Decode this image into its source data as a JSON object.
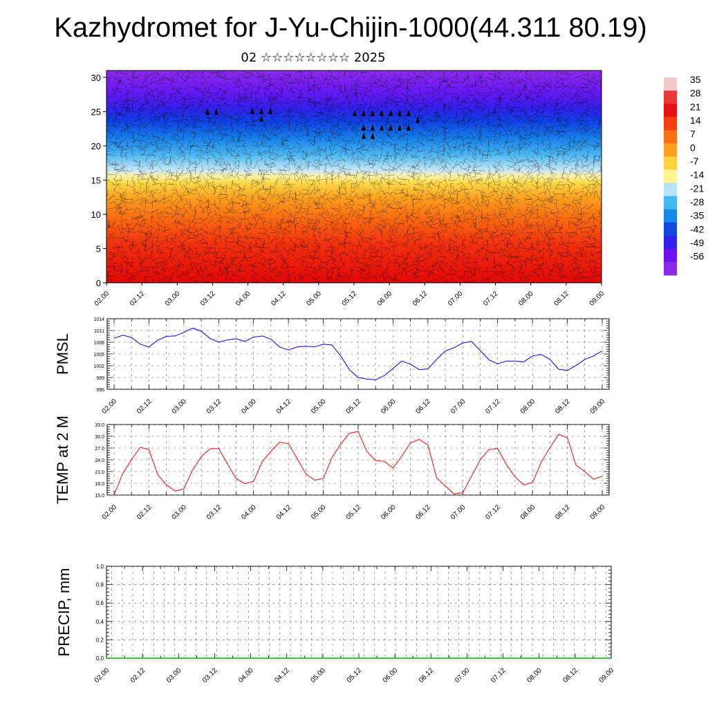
{
  "title": "Kazhydromet for J-Yu-Chijin-1000(44.311 80.19)",
  "subtitle": "02 ☆☆☆☆☆☆☆☆ 2025",
  "chart_data": [
    {
      "type": "heatmap",
      "ylim": [
        0,
        31
      ],
      "y_ticks": [
        "0",
        "5",
        "10",
        "15",
        "20",
        "25",
        "30"
      ],
      "x_ticks": [
        "02.00",
        "02.12",
        "03.00",
        "03.12",
        "04.00",
        "04.12",
        "05.00",
        "05.12",
        "06.00",
        "06.12",
        "07.00",
        "07.12",
        "08.00",
        "08.12",
        "09.00"
      ],
      "colorbar": {
        "labels": [
          "35",
          "28",
          "21",
          "14",
          "7",
          "0",
          "-7",
          "-14",
          "-21",
          "-28",
          "-35",
          "-42",
          "-49",
          "-56"
        ],
        "colors": [
          "#f2c8c8",
          "#e83838",
          "#e81010",
          "#f04010",
          "#f87010",
          "#fca020",
          "#fdd040",
          "#fef690",
          "#b8e4f8",
          "#40b8f0",
          "#1888e8",
          "#1048e0",
          "#3020e8",
          "#7010f0",
          "#8c28e8"
        ]
      },
      "note_values": "temperature field; colder with height, warm near ground",
      "series": []
    },
    {
      "type": "line",
      "ylabel": "PMSL",
      "ylim": [
        996,
        1014
      ],
      "y_ticks": [
        "996",
        "999",
        "1002",
        "1005",
        "1008",
        "1011",
        "1014"
      ],
      "x_ticks": [
        "02.00",
        "02.12",
        "03.00",
        "03.12",
        "04.00",
        "04.12",
        "05.00",
        "05.12",
        "06.00",
        "06.12",
        "07.00",
        "07.12",
        "08.00",
        "08.12",
        "09.00"
      ],
      "color": "#0000ff",
      "values": [
        1009.0,
        1009.8,
        1009.2,
        1007.5,
        1006.8,
        1008.5,
        1009.5,
        1009.6,
        1010.5,
        1011.6,
        1010.8,
        1009.0,
        1008.0,
        1008.6,
        1008.9,
        1008.2,
        1009.3,
        1009.6,
        1008.8,
        1006.8,
        1006.0,
        1006.8,
        1007.0,
        1006.8,
        1007.5,
        1007.3,
        1004.5,
        1001.0,
        999.0,
        998.6,
        998.4,
        999.5,
        1001.3,
        1003.2,
        1002.4,
        1001.0,
        1001.2,
        1003.6,
        1005.8,
        1006.6,
        1007.8,
        1008.2,
        1005.9,
        1003.5,
        1002.5,
        1003.2,
        1003.2,
        1003.0,
        1004.5,
        1004.9,
        1003.6,
        1001.1,
        1000.8,
        1002.1,
        1003.6,
        1004.5,
        1005.8
      ]
    },
    {
      "type": "line",
      "ylabel": "TEMP at 2 M",
      "ylim": [
        15.0,
        33.0
      ],
      "y_ticks": [
        "15.0",
        "18.0",
        "21.0",
        "24.0",
        "27.0",
        "30.0",
        "33.0"
      ],
      "x_ticks": [
        "02.00",
        "02.12",
        "03.00",
        "03.12",
        "04.00",
        "04.12",
        "05.00",
        "05.12",
        "06.00",
        "06.12",
        "07.00",
        "07.12",
        "08.00",
        "08.12",
        "09.00"
      ],
      "color": "#ff0000",
      "values": [
        15.0,
        20.6,
        24.0,
        27.2,
        26.6,
        20.2,
        17.6,
        16.0,
        16.6,
        21.4,
        24.8,
        26.8,
        26.9,
        23.0,
        19.2,
        17.9,
        18.5,
        23.5,
        26.2,
        28.5,
        28.1,
        24.3,
        20.4,
        18.8,
        19.2,
        24.6,
        28.0,
        30.8,
        31.2,
        26.1,
        23.8,
        23.6,
        21.9,
        24.9,
        28.3,
        29.2,
        27.8,
        19.4,
        17.3,
        15.3,
        15.6,
        19.8,
        24.0,
        26.6,
        26.9,
        22.8,
        19.6,
        17.6,
        18.2,
        23.4,
        27.1,
        30.5,
        29.6,
        22.6,
        21.0,
        19.0,
        19.8
      ]
    },
    {
      "type": "line",
      "ylabel": "PRECIP, mm",
      "ylim": [
        0.0,
        1.0
      ],
      "y_ticks": [
        "0.0",
        "0.2",
        "0.4",
        "0.6",
        "0.8",
        "1.0"
      ],
      "x_ticks": [
        "02.00",
        "02.12",
        "03.00",
        "03.12",
        "04.00",
        "04.12",
        "05.00",
        "05.12",
        "06.00",
        "06.12",
        "07.00",
        "07.12",
        "08.00",
        "08.12",
        "09.00"
      ],
      "color": "#00aa00",
      "values": [
        0,
        0,
        0,
        0,
        0,
        0,
        0,
        0,
        0,
        0,
        0,
        0,
        0,
        0,
        0,
        0,
        0,
        0,
        0,
        0,
        0,
        0,
        0,
        0,
        0,
        0,
        0,
        0,
        0,
        0,
        0,
        0,
        0,
        0,
        0,
        0,
        0,
        0,
        0,
        0,
        0,
        0,
        0,
        0,
        0,
        0,
        0,
        0,
        0,
        0,
        0,
        0,
        0,
        0,
        0,
        0,
        0
      ]
    }
  ]
}
